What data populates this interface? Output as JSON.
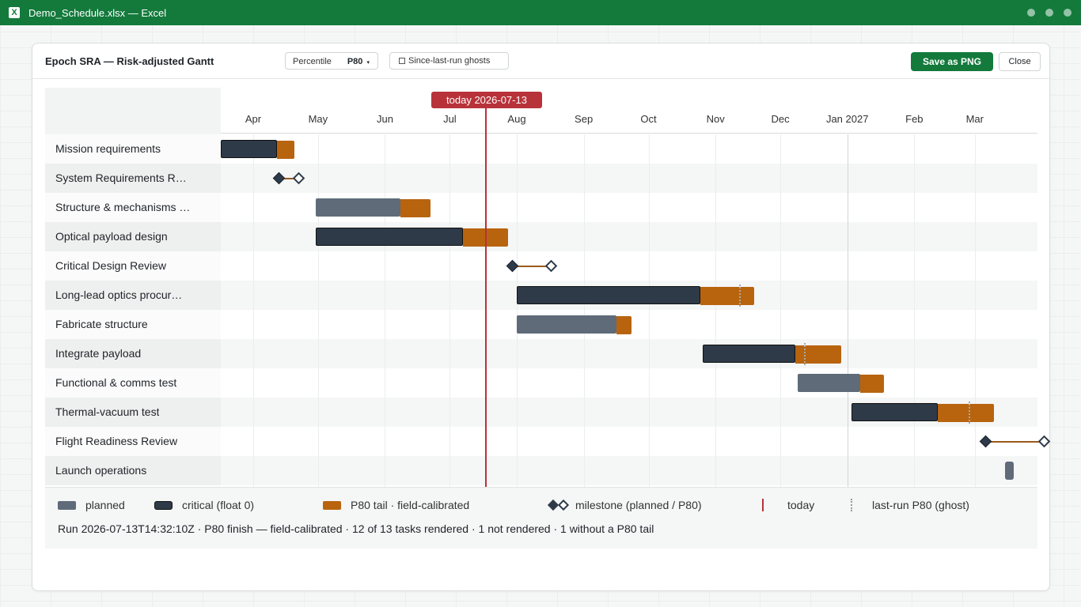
{
  "window": {
    "title": "Demo_Schedule.xlsx — Excel",
    "app_icon": "excel-icon"
  },
  "panel": {
    "title": "Epoch SRA — Risk-adjusted Gantt",
    "percentile": {
      "label": "Percentile",
      "value": "P80",
      "caret": "▾"
    },
    "ghost_toggle": {
      "checkbox": "□",
      "label": "Since-last-run ghosts",
      "checked": false
    },
    "save_label": "Save as PNG",
    "close_label": "Close"
  },
  "colors": {
    "brand": "#137a3c",
    "critical": "#2e3a48",
    "planned": "#5f6b78",
    "p80_tail": "#b8640e",
    "today": "#b8323a",
    "ghost": "#a9a9a9"
  },
  "axis": {
    "months": [
      "Apr",
      "May",
      "Jun",
      "Jul",
      "Aug",
      "Sep",
      "Oct",
      "Nov",
      "Dec",
      "Jan 2027",
      "Feb",
      "Mar"
    ]
  },
  "today": {
    "label": "today 2026-07-13",
    "date": "2026-07-13"
  },
  "tasks": [
    {
      "label": "Mission requirements",
      "kind": "bar",
      "critical": true,
      "start": "2026-03-17",
      "finish": "2026-04-12",
      "p80": "2026-04-20"
    },
    {
      "label": "System Requirements Rev…",
      "kind": "milestone",
      "planned": "2026-04-13",
      "p80": "2026-04-22"
    },
    {
      "label": "Structure & mechanisms …",
      "kind": "bar",
      "critical": false,
      "start": "2026-04-30",
      "finish": "2026-06-08",
      "p80": "2026-06-22"
    },
    {
      "label": "Optical payload design",
      "kind": "bar",
      "critical": true,
      "start": "2026-04-30",
      "finish": "2026-07-07",
      "p80": "2026-07-28"
    },
    {
      "label": "Critical Design Review",
      "kind": "milestone",
      "planned": "2026-07-30",
      "p80": "2026-08-17"
    },
    {
      "label": "Long-lead optics procur…",
      "kind": "bar",
      "critical": true,
      "start": "2026-08-01",
      "finish": "2026-10-25",
      "p80": "2026-11-19",
      "ghost": "2026-11-12"
    },
    {
      "label": "Fabricate structure",
      "kind": "bar",
      "critical": false,
      "start": "2026-08-01",
      "finish": "2026-09-16",
      "p80": "2026-09-23"
    },
    {
      "label": "Integrate payload",
      "kind": "bar",
      "critical": true,
      "start": "2026-10-26",
      "finish": "2026-12-08",
      "p80": "2026-12-29",
      "ghost": "2026-12-12"
    },
    {
      "label": "Functional & comms test",
      "kind": "bar",
      "critical": false,
      "start": "2026-12-09",
      "finish": "2027-01-07",
      "p80": "2027-01-18"
    },
    {
      "label": "Thermal-vacuum test",
      "kind": "bar",
      "critical": true,
      "start": "2027-01-03",
      "finish": "2027-02-12",
      "p80": "2027-03-10",
      "ghost": "2027-02-26"
    },
    {
      "label": "Flight Readiness Review",
      "kind": "milestone",
      "planned": "2027-03-06",
      "p80": "2027-04-02"
    },
    {
      "label": "Launch operations",
      "kind": "launch",
      "start": "2027-03-15",
      "finish": "2027-03-19"
    }
  ],
  "legend": {
    "planned": "planned",
    "critical": "critical (float 0)",
    "tail": "P80 tail · field-calibrated",
    "milestone": "milestone (planned / P80)",
    "today": "today",
    "ghost": "last-run P80 (ghost)"
  },
  "run_info": "Run 2026-07-13T14:32:10Z · P80 finish — field-calibrated · 12 of 13 tasks rendered · 1 not rendered · 1 without a P80 tail"
}
